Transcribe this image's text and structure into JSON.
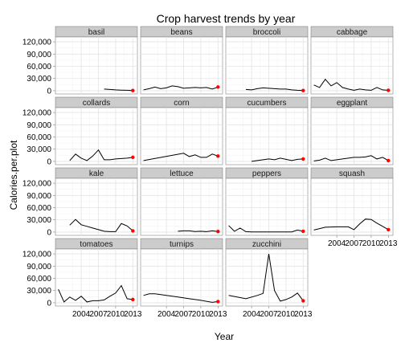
{
  "chart_data": {
    "type": "line",
    "title": "Crop harvest trends by year",
    "xlabel": "Year",
    "ylabel": "Calories.per.plot",
    "xlim": [
      1999.5,
      2013.8
    ],
    "ylim": [
      -8000,
      132000
    ],
    "x_ticks": [
      2004,
      2007,
      2010,
      2013
    ],
    "y_ticks": [
      0,
      30000,
      60000,
      90000,
      120000
    ],
    "x_tick_labels": [
      "2004",
      "2007",
      "2010",
      "2013"
    ],
    "y_tick_labels": [
      "0",
      "30,000",
      "60,000",
      "90,000",
      "120,000"
    ],
    "grid": true,
    "facet_columns": 4,
    "highlight_color": "#ff0000",
    "line_color": "#000000",
    "panels": [
      {
        "name": "basil",
        "x": [
          2008,
          2009,
          2010,
          2011,
          2012,
          2013
        ],
        "y": [
          4000,
          3000,
          2000,
          1500,
          1000,
          500
        ]
      },
      {
        "name": "beans",
        "x": [
          2000,
          2001,
          2002,
          2003,
          2004,
          2005,
          2006,
          2007,
          2008,
          2009,
          2010,
          2011,
          2012,
          2013
        ],
        "y": [
          2000,
          5000,
          9000,
          5000,
          7000,
          12000,
          10000,
          6000,
          7000,
          8000,
          7000,
          8000,
          4000,
          9000
        ]
      },
      {
        "name": "broccoli",
        "x": [
          2003,
          2004,
          2005,
          2006,
          2007,
          2008,
          2009,
          2010,
          2011,
          2012,
          2013
        ],
        "y": [
          3000,
          2000,
          5000,
          7000,
          6000,
          5000,
          4000,
          4000,
          2000,
          1000,
          500
        ]
      },
      {
        "name": "cabbage",
        "x": [
          2000,
          2001,
          2002,
          2003,
          2004,
          2005,
          2006,
          2007,
          2008,
          2009,
          2010,
          2011,
          2012,
          2013
        ],
        "y": [
          14000,
          8000,
          28000,
          12000,
          20000,
          8000,
          4000,
          1000,
          4000,
          2000,
          1000,
          8000,
          2000,
          1000
        ]
      },
      {
        "name": "collards",
        "x": [
          2002,
          2003,
          2004,
          2005,
          2006,
          2007,
          2008,
          2009,
          2010,
          2011,
          2012,
          2013
        ],
        "y": [
          2000,
          18000,
          8000,
          2000,
          13000,
          28000,
          4000,
          4000,
          6000,
          7000,
          8000,
          10000
        ]
      },
      {
        "name": "corn",
        "x": [
          2000,
          2007,
          2008,
          2009,
          2010,
          2011,
          2012,
          2013
        ],
        "y": [
          2000,
          20000,
          12000,
          16000,
          10000,
          10000,
          18000,
          13000
        ]
      },
      {
        "name": "cucumbers",
        "x": [
          2004,
          2005,
          2006,
          2007,
          2008,
          2009,
          2010,
          2011,
          2012,
          2013
        ],
        "y": [
          0,
          2000,
          4000,
          6000,
          4000,
          8000,
          5000,
          2000,
          5000,
          6000
        ]
      },
      {
        "name": "eggplant",
        "x": [
          2000,
          2001,
          2002,
          2003,
          2004,
          2005,
          2006,
          2007,
          2008,
          2009,
          2010,
          2011,
          2012,
          2013
        ],
        "y": [
          1000,
          3000,
          8000,
          2000,
          4000,
          6000,
          8000,
          10000,
          10000,
          11000,
          14000,
          6000,
          10000,
          2000
        ]
      },
      {
        "name": "kale",
        "x": [
          2002,
          2003,
          2004,
          2005,
          2006,
          2007,
          2008,
          2009,
          2010,
          2011,
          2012,
          2013
        ],
        "y": [
          17000,
          31000,
          18000,
          14000,
          10000,
          6000,
          2000,
          1000,
          1000,
          21000,
          15000,
          3000
        ]
      },
      {
        "name": "lettuce",
        "x": [
          2006,
          2007,
          2008,
          2009,
          2010,
          2011,
          2012,
          2013
        ],
        "y": [
          2000,
          3000,
          3000,
          1500,
          2000,
          1000,
          3000,
          1500
        ]
      },
      {
        "name": "peppers",
        "x": [
          2000,
          2001,
          2002,
          2003,
          2004,
          2005,
          2006,
          2007,
          2008,
          2009,
          2010,
          2011,
          2012,
          2013
        ],
        "y": [
          16000,
          2000,
          10000,
          1000,
          500,
          500,
          400,
          400,
          400,
          300,
          300,
          500,
          5000,
          2000
        ]
      },
      {
        "name": "squash",
        "x": [
          2000,
          2002,
          2004,
          2006,
          2007,
          2008,
          2009,
          2010,
          2011,
          2012,
          2013
        ],
        "y": [
          5000,
          12000,
          13000,
          13000,
          6000,
          20000,
          32000,
          31000,
          22000,
          14000,
          6000
        ]
      },
      {
        "name": "tomatoes",
        "x": [
          2000,
          2001,
          2002,
          2003,
          2004,
          2005,
          2006,
          2007,
          2008,
          2009,
          2010,
          2011,
          2012,
          2013
        ],
        "y": [
          33000,
          2000,
          14000,
          6000,
          16000,
          2000,
          5000,
          5000,
          7000,
          16000,
          24000,
          42000,
          10000,
          8000
        ]
      },
      {
        "name": "turnips",
        "x": [
          2000,
          2001,
          2002,
          2004,
          2006,
          2008,
          2010,
          2012,
          2013
        ],
        "y": [
          18000,
          22000,
          22000,
          18000,
          14000,
          10000,
          6000,
          1000,
          3000
        ]
      },
      {
        "name": "zucchini",
        "x": [
          2000,
          2003,
          2005,
          2006,
          2007,
          2008,
          2009,
          2010,
          2011,
          2012,
          2013
        ],
        "y": [
          18000,
          10000,
          18000,
          23000,
          120000,
          30000,
          4000,
          8000,
          14000,
          24000,
          5000
        ]
      }
    ]
  }
}
